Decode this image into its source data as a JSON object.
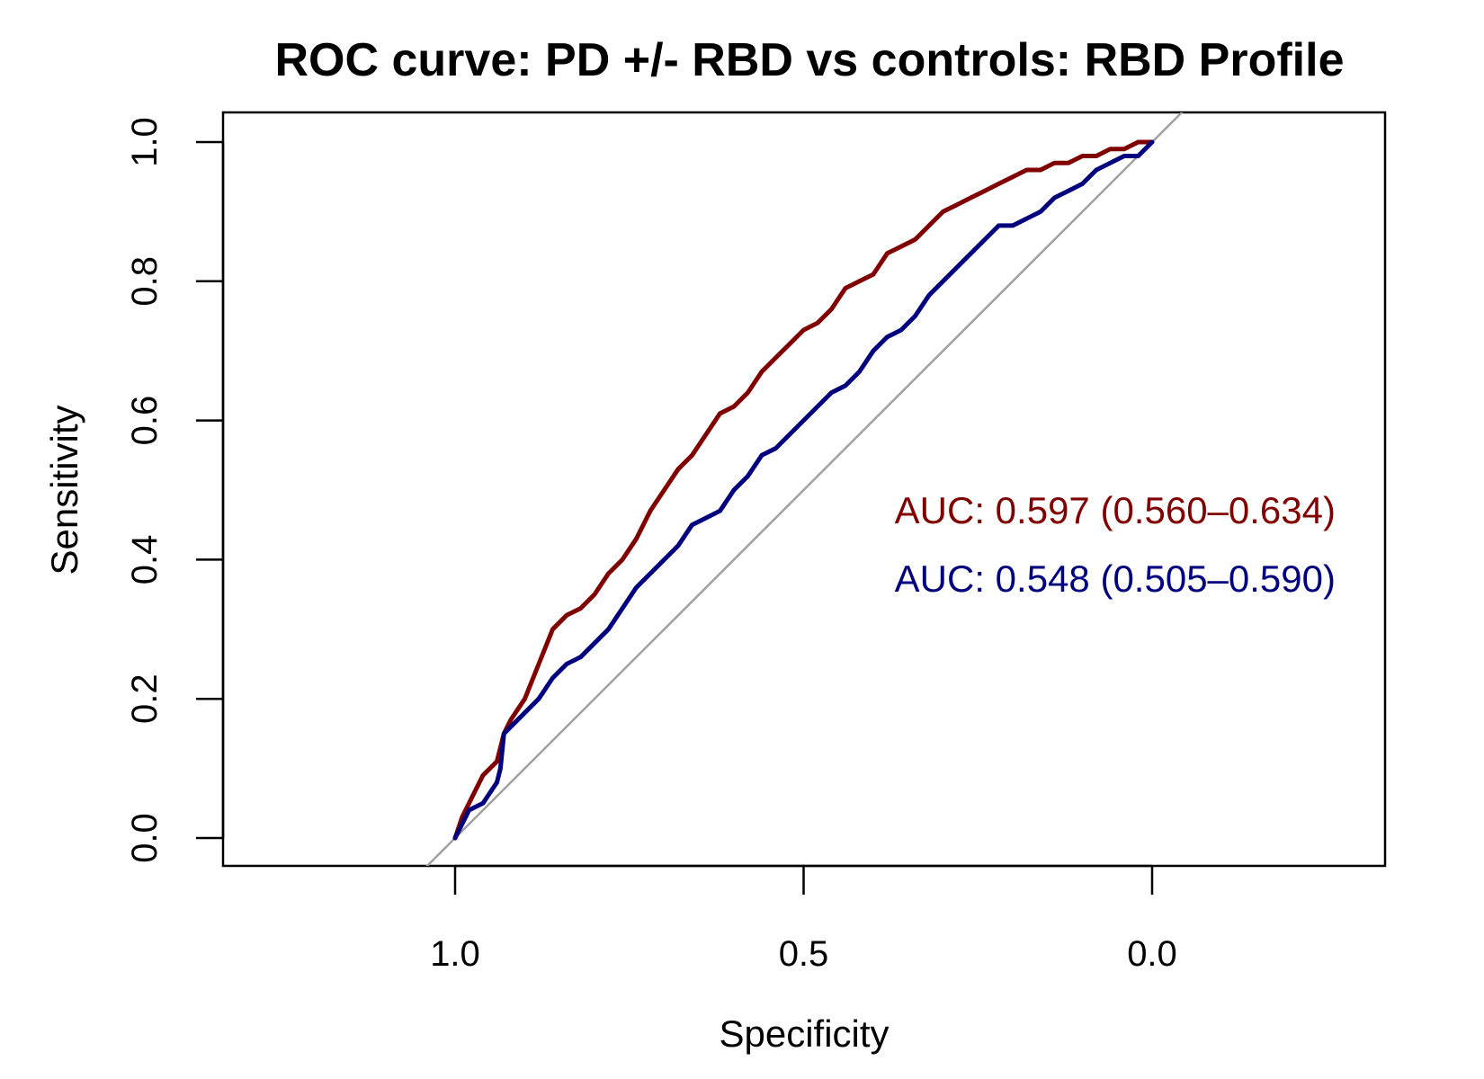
{
  "chart_data": {
    "type": "line",
    "title": "ROC curve: PD +/- RBD vs controls: RBD Profile",
    "xlabel": "Specificity",
    "ylabel": "Sensitivity",
    "xlim": [
      1.0,
      0.0
    ],
    "ylim": [
      0.0,
      1.0
    ],
    "x_reversed": true,
    "x_ticks": [
      1.0,
      0.5,
      0.0
    ],
    "x_tick_labels": [
      "1.0",
      "0.5",
      "0.0"
    ],
    "y_ticks": [
      0.0,
      0.2,
      0.4,
      0.6,
      0.8,
      1.0
    ],
    "y_tick_labels": [
      "0.0",
      "0.2",
      "0.4",
      "0.6",
      "0.8",
      "1.0"
    ],
    "reference_line": {
      "from": [
        1.0,
        0.0
      ],
      "to": [
        0.0,
        1.0
      ],
      "color": "#a0a0a0"
    },
    "grid": false,
    "legend": "none",
    "annotations": [
      {
        "text": "AUC: 0.597 (0.560–0.634)",
        "color": "#800000",
        "series_index": 0
      },
      {
        "text": "AUC: 0.548 (0.505–0.590)",
        "color": "#00007f",
        "series_index": 1
      }
    ],
    "series": [
      {
        "color": "#800000",
        "specificity": [
          1.0,
          0.99,
          0.98,
          0.96,
          0.94,
          0.93,
          0.92,
          0.9,
          0.88,
          0.86,
          0.84,
          0.82,
          0.8,
          0.78,
          0.76,
          0.74,
          0.72,
          0.7,
          0.68,
          0.66,
          0.64,
          0.62,
          0.6,
          0.58,
          0.56,
          0.54,
          0.52,
          0.5,
          0.48,
          0.46,
          0.44,
          0.42,
          0.4,
          0.38,
          0.36,
          0.34,
          0.32,
          0.3,
          0.28,
          0.26,
          0.24,
          0.22,
          0.2,
          0.18,
          0.16,
          0.14,
          0.12,
          0.1,
          0.08,
          0.06,
          0.04,
          0.02,
          0.0
        ],
        "sensitivity": [
          0.0,
          0.03,
          0.05,
          0.09,
          0.11,
          0.15,
          0.17,
          0.2,
          0.25,
          0.3,
          0.32,
          0.33,
          0.35,
          0.38,
          0.4,
          0.43,
          0.47,
          0.5,
          0.53,
          0.55,
          0.58,
          0.61,
          0.62,
          0.64,
          0.67,
          0.69,
          0.71,
          0.73,
          0.74,
          0.76,
          0.79,
          0.8,
          0.81,
          0.84,
          0.85,
          0.86,
          0.88,
          0.9,
          0.91,
          0.92,
          0.93,
          0.94,
          0.95,
          0.96,
          0.96,
          0.97,
          0.97,
          0.98,
          0.98,
          0.99,
          0.99,
          1.0,
          1.0
        ]
      },
      {
        "color": "#00007f",
        "specificity": [
          1.0,
          0.99,
          0.98,
          0.96,
          0.94,
          0.935,
          0.93,
          0.92,
          0.9,
          0.88,
          0.86,
          0.84,
          0.82,
          0.8,
          0.78,
          0.76,
          0.74,
          0.72,
          0.7,
          0.68,
          0.66,
          0.64,
          0.62,
          0.6,
          0.58,
          0.56,
          0.54,
          0.52,
          0.5,
          0.48,
          0.46,
          0.44,
          0.42,
          0.4,
          0.38,
          0.36,
          0.34,
          0.32,
          0.3,
          0.28,
          0.26,
          0.24,
          0.22,
          0.2,
          0.18,
          0.16,
          0.14,
          0.12,
          0.1,
          0.08,
          0.06,
          0.04,
          0.02,
          0.0
        ],
        "sensitivity": [
          0.0,
          0.02,
          0.04,
          0.05,
          0.08,
          0.1,
          0.15,
          0.16,
          0.18,
          0.2,
          0.23,
          0.25,
          0.26,
          0.28,
          0.3,
          0.33,
          0.36,
          0.38,
          0.4,
          0.42,
          0.45,
          0.46,
          0.47,
          0.5,
          0.52,
          0.55,
          0.56,
          0.58,
          0.6,
          0.62,
          0.64,
          0.65,
          0.67,
          0.7,
          0.72,
          0.73,
          0.75,
          0.78,
          0.8,
          0.82,
          0.84,
          0.86,
          0.88,
          0.88,
          0.89,
          0.9,
          0.92,
          0.93,
          0.94,
          0.96,
          0.97,
          0.98,
          0.98,
          1.0
        ]
      }
    ]
  }
}
